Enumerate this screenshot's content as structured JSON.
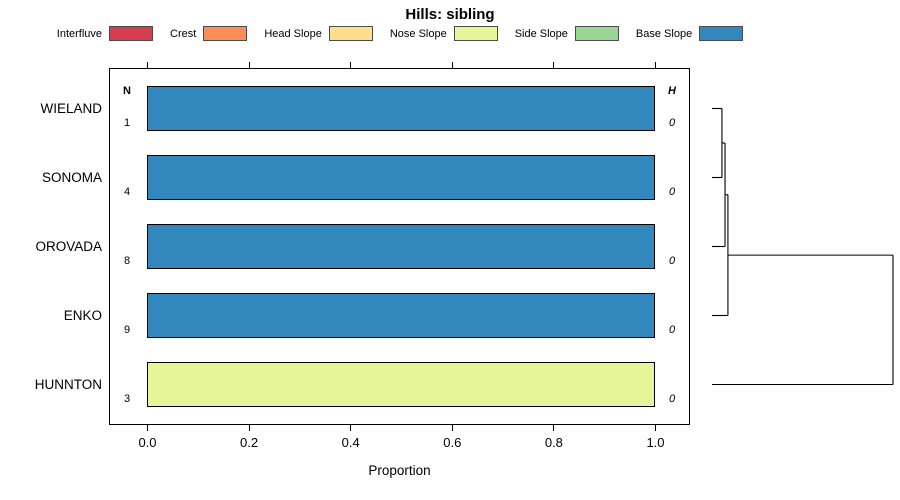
{
  "title": "Hills: sibling",
  "legend": {
    "items": [
      {
        "label": "Interfluve",
        "color": "#D53E4F"
      },
      {
        "label": "Crest",
        "color": "#FC8D59"
      },
      {
        "label": "Head Slope",
        "color": "#FEE08B"
      },
      {
        "label": "Nose Slope",
        "color": "#E6F598"
      },
      {
        "label": "Side Slope",
        "color": "#99D594"
      },
      {
        "label": "Base Slope",
        "color": "#3288BD"
      }
    ]
  },
  "table_headers": {
    "n": "N",
    "h": "H"
  },
  "chart_data": {
    "type": "bar",
    "orientation": "horizontal",
    "stacked": true,
    "title": "Hills: sibling",
    "xlabel": "Proportion",
    "ylabel": "",
    "xlim": [
      0,
      1
    ],
    "x_ticks": [
      0,
      0.2,
      0.4,
      0.6,
      0.8,
      1.0
    ],
    "x_tick_labels": [
      "0.0",
      "0.2",
      "0.4",
      "0.6",
      "0.8",
      "1.0"
    ],
    "grid": false,
    "legend_position": "top",
    "categories": [
      "WIELAND",
      "SONOMA",
      "OROVADA",
      "ENKO",
      "HUNNTON"
    ],
    "series": [
      {
        "name": "Interfluve",
        "color": "#D53E4F",
        "values": [
          0,
          0,
          0,
          0,
          0
        ]
      },
      {
        "name": "Crest",
        "color": "#FC8D59",
        "values": [
          0,
          0,
          0,
          0,
          0
        ]
      },
      {
        "name": "Head Slope",
        "color": "#FEE08B",
        "values": [
          0,
          0,
          0,
          0,
          0
        ]
      },
      {
        "name": "Nose Slope",
        "color": "#E6F598",
        "values": [
          0,
          0,
          0,
          0,
          1.0
        ]
      },
      {
        "name": "Side Slope",
        "color": "#99D594",
        "values": [
          0,
          0,
          0,
          0,
          0
        ]
      },
      {
        "name": "Base Slope",
        "color": "#3288BD",
        "values": [
          1.0,
          1.0,
          1.0,
          1.0,
          0
        ]
      }
    ],
    "row_annotations": {
      "N": [
        "1",
        "4",
        "8",
        "9",
        "3"
      ],
      "H": [
        "0",
        "0",
        "0",
        "0",
        "0"
      ]
    },
    "dendrogram": {
      "leaves": [
        "WIELAND",
        "SONOMA",
        "OROVADA",
        "ENKO",
        "HUNNTON"
      ],
      "merges": [
        {
          "id": "cluster-1",
          "children": [
            "WIELAND",
            "SONOMA"
          ],
          "height": 0.055
        },
        {
          "id": "cluster-2",
          "children": [
            "cluster-1",
            "OROVADA"
          ],
          "height": 0.072
        },
        {
          "id": "cluster-3",
          "children": [
            "cluster-2",
            "ENKO"
          ],
          "height": 0.088
        },
        {
          "id": "root",
          "children": [
            "cluster-3",
            "HUNNTON"
          ],
          "height": 1.0
        }
      ]
    }
  }
}
